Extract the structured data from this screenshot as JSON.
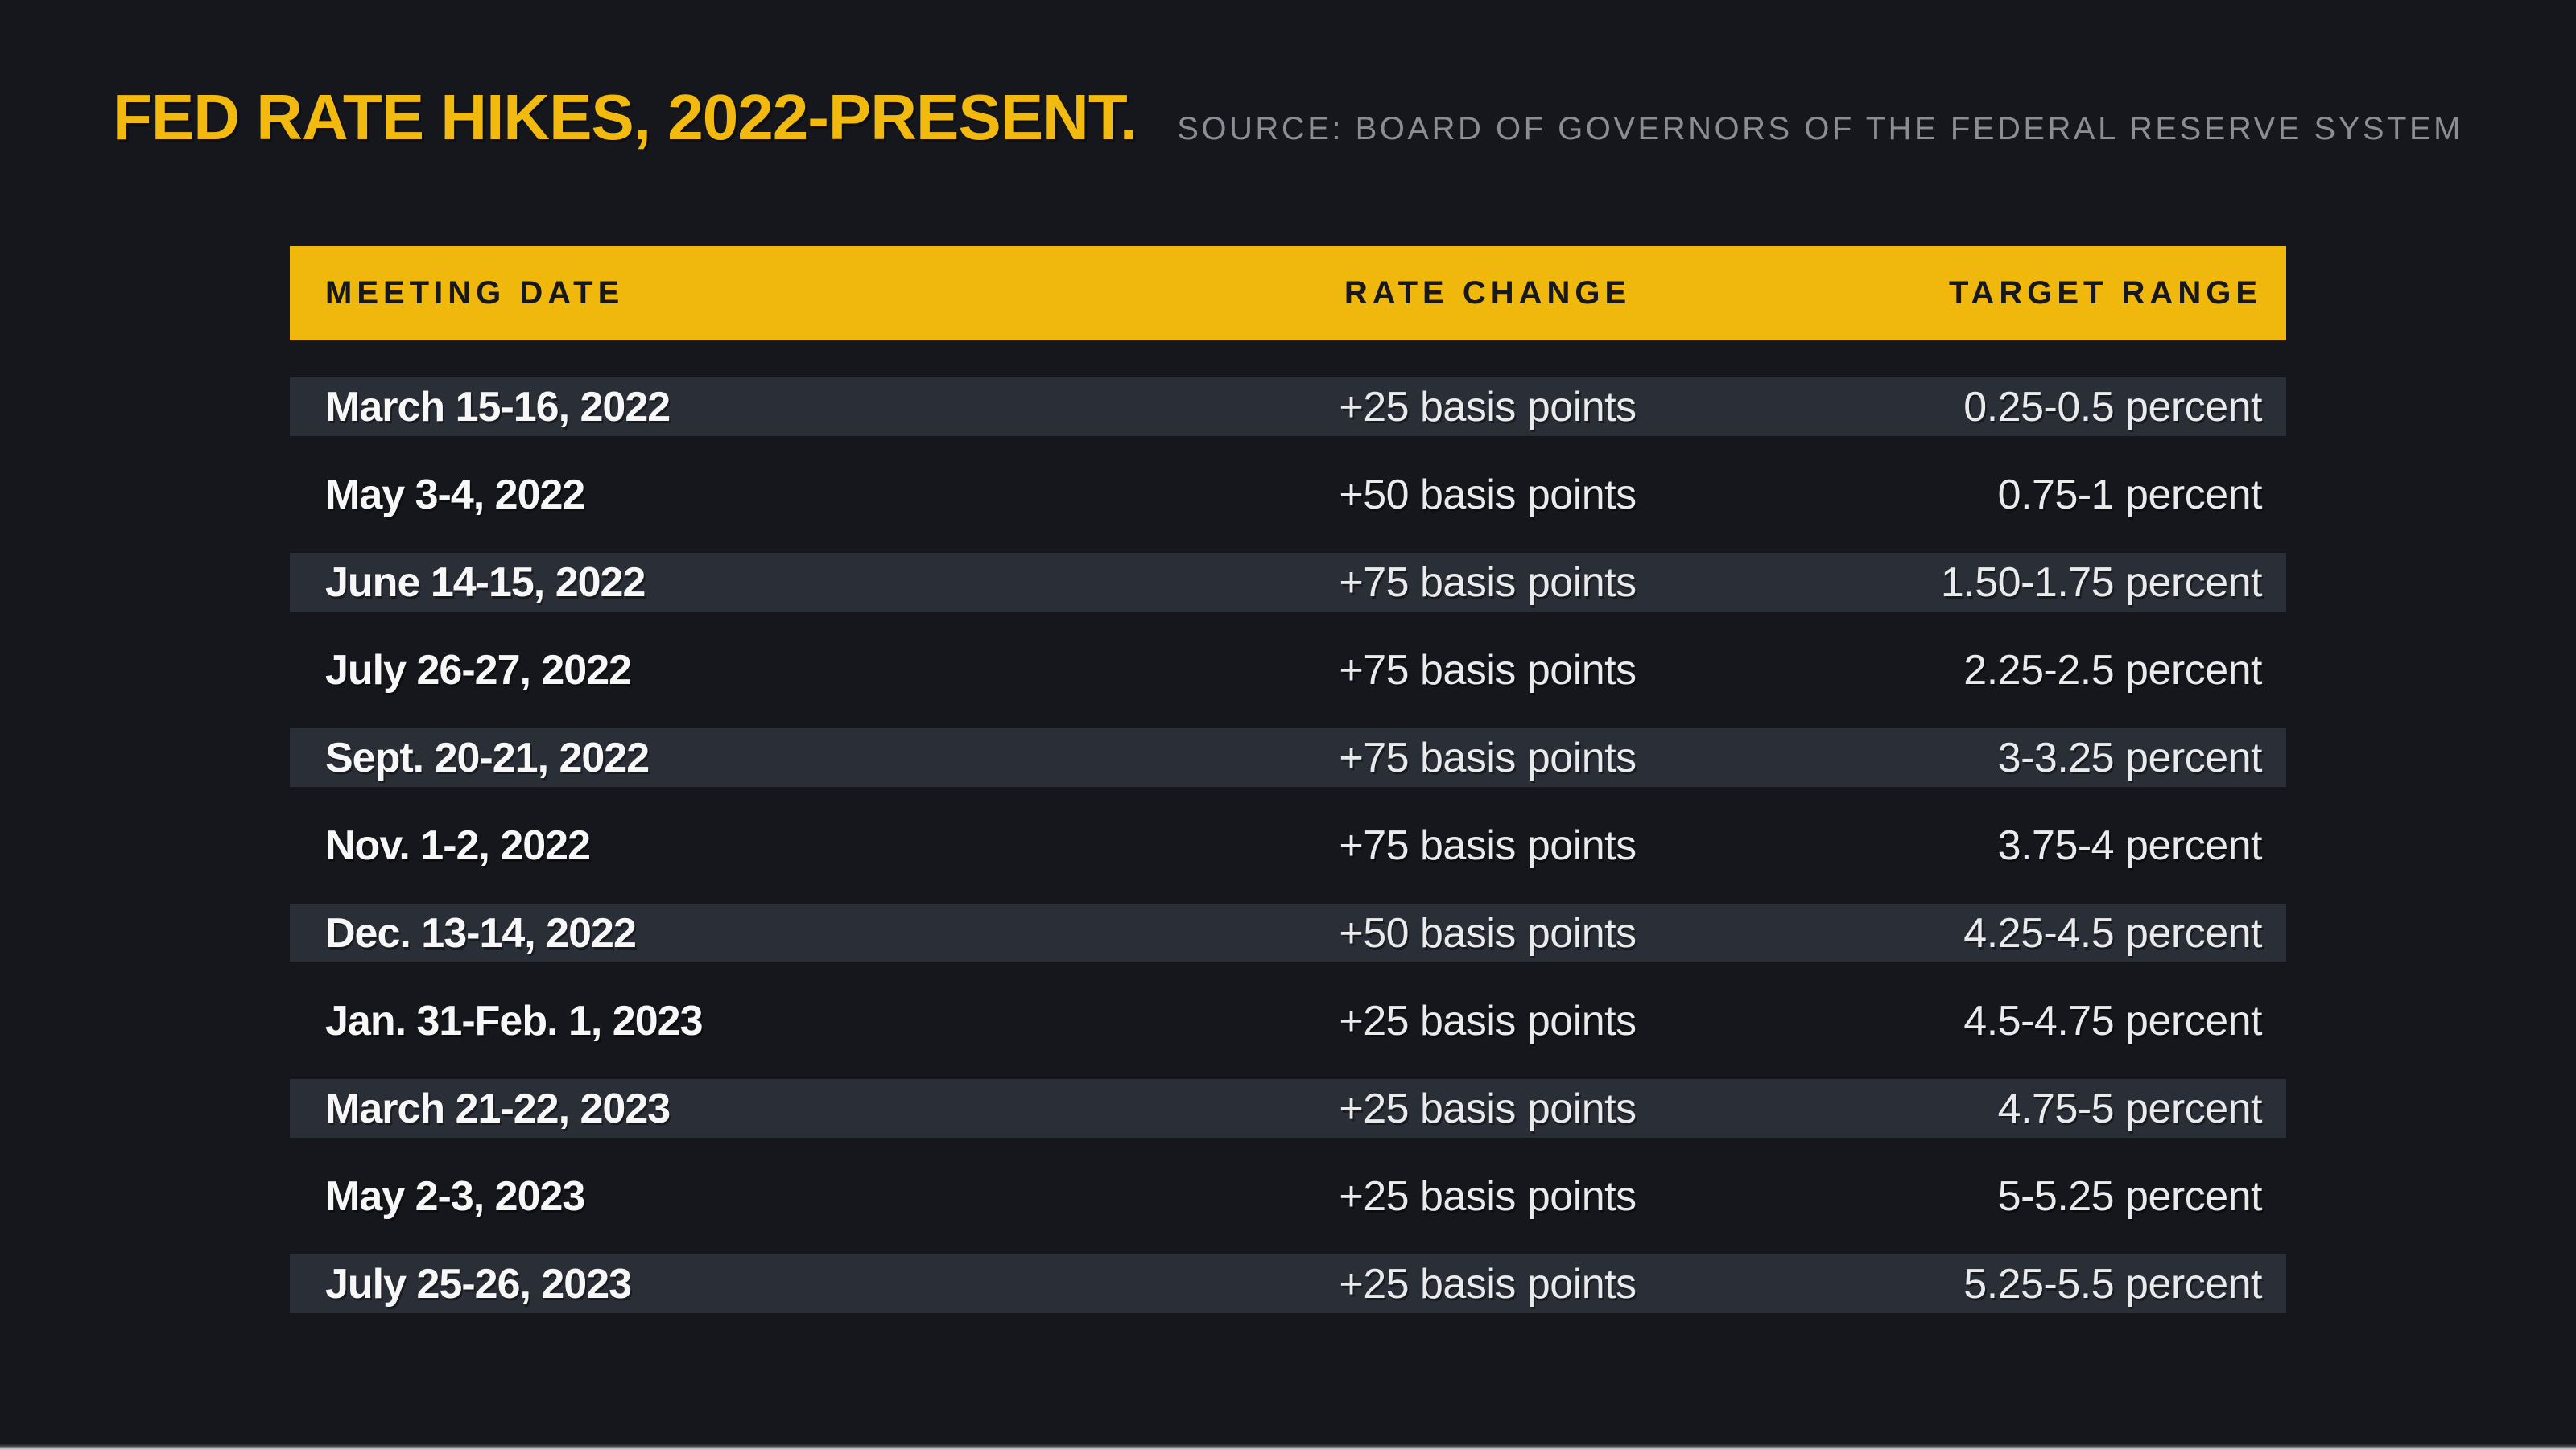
{
  "header": {
    "title": "FED RATE HIKES, 2022-PRESENT.",
    "source": "SOURCE: BOARD OF GOVERNORS OF THE FEDERAL RESERVE SYSTEM"
  },
  "table": {
    "columns": [
      "MEETING DATE",
      "RATE CHANGE",
      "TARGET RANGE"
    ],
    "rows": [
      {
        "date": "March 15-16, 2022",
        "change": "+25 basis points",
        "range": "0.25-0.5 percent"
      },
      {
        "date": "May 3-4, 2022",
        "change": "+50 basis points",
        "range": "0.75-1 percent"
      },
      {
        "date": "June 14-15, 2022",
        "change": "+75 basis points",
        "range": "1.50-1.75 percent"
      },
      {
        "date": "July 26-27, 2022",
        "change": "+75 basis points",
        "range": "2.25-2.5 percent"
      },
      {
        "date": "Sept. 20-21, 2022",
        "change": "+75 basis points",
        "range": "3-3.25 percent"
      },
      {
        "date": "Nov. 1-2, 2022",
        "change": "+75 basis points",
        "range": "3.75-4 percent"
      },
      {
        "date": "Dec. 13-14, 2022",
        "change": "+50 basis points",
        "range": "4.25-4.5 percent"
      },
      {
        "date": "Jan. 31-Feb. 1, 2023",
        "change": "+25 basis points",
        "range": "4.5-4.75 percent"
      },
      {
        "date": "March 21-22, 2023",
        "change": "+25 basis points",
        "range": "4.75-5 percent"
      },
      {
        "date": "May 2-3, 2023",
        "change": "+25 basis points",
        "range": "5-5.25 percent"
      },
      {
        "date": "July 25-26, 2023",
        "change": "+25 basis points",
        "range": "5.25-5.5 percent"
      }
    ]
  },
  "colors": {
    "background": "#16171C",
    "accent_yellow": "#F0B80D",
    "title_yellow": "#F2B90E",
    "row_stripe": "#2A2E37",
    "date_text": "#F7F7F8",
    "value_text": "#E9EAEC",
    "source_text": "#8B8D93",
    "header_text": "#17181B"
  },
  "chart_data": {
    "type": "table",
    "title": "FED RATE HIKES, 2022-PRESENT.",
    "source": "SOURCE: BOARD OF GOVERNORS OF THE FEDERAL RESERVE SYSTEM",
    "columns": [
      "MEETING DATE",
      "RATE CHANGE",
      "TARGET RANGE"
    ],
    "rows": [
      [
        "March 15-16, 2022",
        "+25 basis points",
        "0.25-0.5 percent"
      ],
      [
        "May 3-4, 2022",
        "+50 basis points",
        "0.75-1 percent"
      ],
      [
        "June 14-15, 2022",
        "+75 basis points",
        "1.50-1.75 percent"
      ],
      [
        "July 26-27, 2022",
        "+75 basis points",
        "2.25-2.5 percent"
      ],
      [
        "Sept. 20-21, 2022",
        "+75 basis points",
        "3-3.25 percent"
      ],
      [
        "Nov. 1-2, 2022",
        "+75 basis points",
        "3.75-4 percent"
      ],
      [
        "Dec. 13-14, 2022",
        "+50 basis points",
        "4.25-4.5 percent"
      ],
      [
        "Jan. 31-Feb. 1, 2023",
        "+25 basis points",
        "4.5-4.75 percent"
      ],
      [
        "March 21-22, 2023",
        "+25 basis points",
        "4.75-5 percent"
      ],
      [
        "May 2-3, 2023",
        "+25 basis points",
        "5-5.25 percent"
      ],
      [
        "July 25-26, 2023",
        "+25 basis points",
        "5.25-5.5 percent"
      ]
    ],
    "rate_change_basis_points": [
      25,
      50,
      75,
      75,
      75,
      75,
      50,
      25,
      25,
      25,
      25
    ],
    "target_range_upper_percent": [
      0.5,
      1,
      1.75,
      2.5,
      3.25,
      4,
      4.5,
      4.75,
      5,
      5.25,
      5.5
    ]
  }
}
